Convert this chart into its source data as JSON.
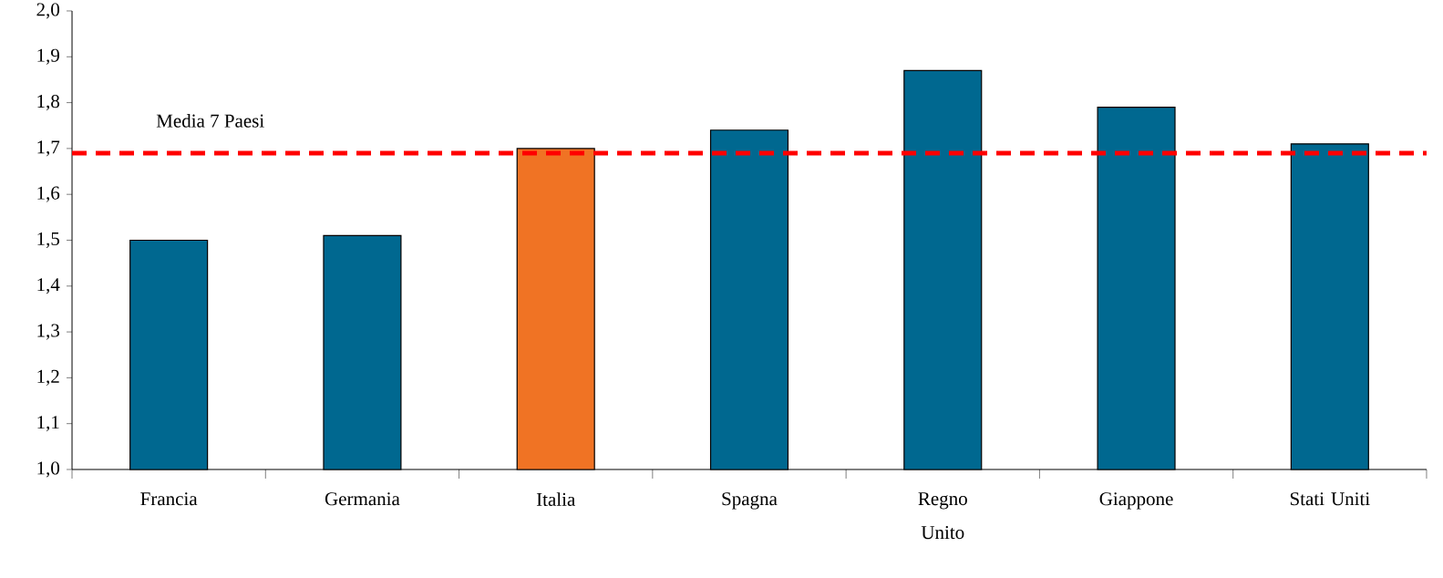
{
  "chart_data": {
    "type": "bar",
    "categories": [
      "Francia",
      "Germania",
      "Italia",
      "Spagna",
      "Regno Unito",
      "Giappone",
      "Stati Uniti"
    ],
    "values": [
      1.5,
      1.51,
      1.7,
      1.74,
      1.87,
      1.79,
      1.71
    ],
    "colors": [
      "#006890",
      "#006890",
      "#f07324",
      "#006890",
      "#006890",
      "#006890",
      "#006890"
    ],
    "ylim": [
      1.0,
      2.0
    ],
    "yticks": [
      {
        "value": 1.0,
        "label": "1,0"
      },
      {
        "value": 1.1,
        "label": "1,1"
      },
      {
        "value": 1.2,
        "label": "1,2"
      },
      {
        "value": 1.3,
        "label": "1,3"
      },
      {
        "value": 1.4,
        "label": "1,4"
      },
      {
        "value": 1.5,
        "label": "1,5"
      },
      {
        "value": 1.6,
        "label": "1,6"
      },
      {
        "value": 1.7,
        "label": "1,7"
      },
      {
        "value": 1.8,
        "label": "1,8"
      },
      {
        "value": 1.9,
        "label": "1,9"
      },
      {
        "value": 2.0,
        "label": "2,0"
      }
    ],
    "ref_lines": [
      {
        "axis": "y",
        "value": 1.69,
        "label": "Media 7 Paesi",
        "color": "#ff0000",
        "line_style": "dashed"
      }
    ],
    "grid": false
  }
}
